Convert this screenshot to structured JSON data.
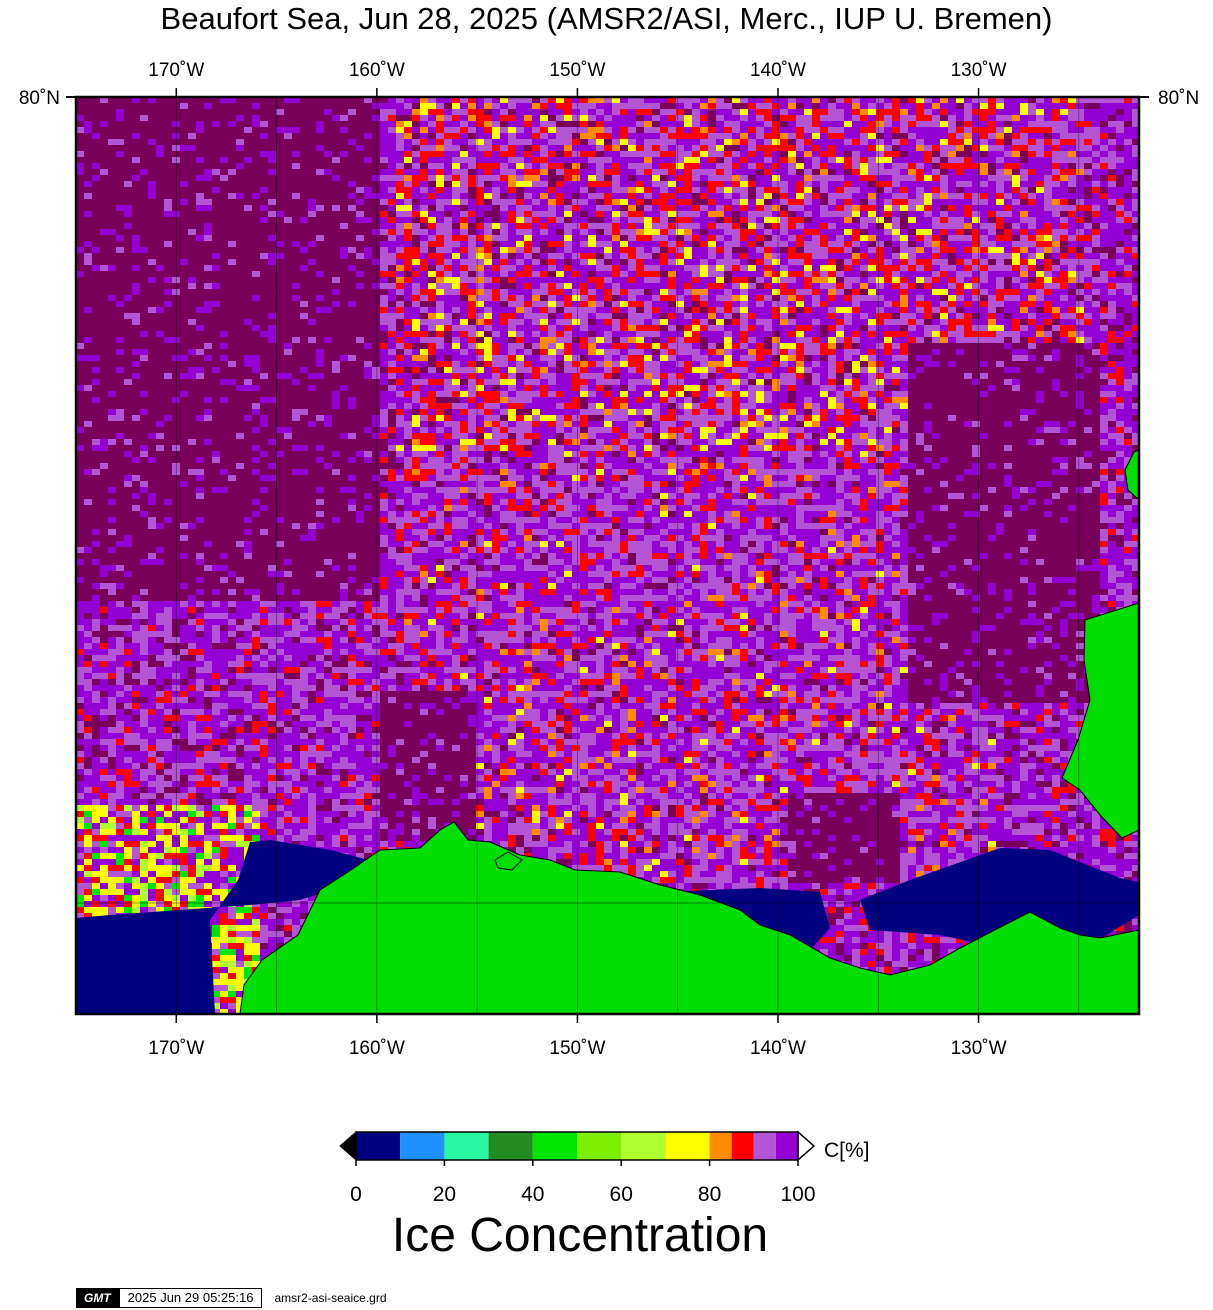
{
  "title": "Beaufort Sea, Jun 28, 2025 (AMSR2/ASI, Merc., IUP U. Bremen)",
  "map": {
    "lon_ticks": [
      {
        "lon": -170,
        "label": "170˚W"
      },
      {
        "lon": -160,
        "label": "160˚W"
      },
      {
        "lon": -150,
        "label": "150˚W"
      },
      {
        "lon": -140,
        "label": "140˚W"
      },
      {
        "lon": -130,
        "label": "130˚W"
      }
    ],
    "lon_range": [
      -175,
      -122
    ],
    "lat_top_label": "80˚N",
    "land_color": "#00dd00",
    "open_water_color": "#000080",
    "variable": "sea ice concentration"
  },
  "colorbar": {
    "unit_label": "C[%]",
    "title": "Ice Concentration",
    "range": [
      0,
      100
    ],
    "tick_values": [
      "0",
      "20",
      "40",
      "60",
      "80",
      "100"
    ],
    "bins": [
      {
        "from": 0,
        "to": 10,
        "color": "#000080"
      },
      {
        "from": 10,
        "to": 20,
        "color": "#1e90ff"
      },
      {
        "from": 20,
        "to": 30,
        "color": "#2af5a0"
      },
      {
        "from": 30,
        "to": 40,
        "color": "#228b22"
      },
      {
        "from": 40,
        "to": 50,
        "color": "#00e600"
      },
      {
        "from": 50,
        "to": 60,
        "color": "#7cee00"
      },
      {
        "from": 60,
        "to": 70,
        "color": "#adff2f"
      },
      {
        "from": 70,
        "to": 80,
        "color": "#ffff00"
      },
      {
        "from": 80,
        "to": 85,
        "color": "#ff8c00"
      },
      {
        "from": 85,
        "to": 90,
        "color": "#ff0000"
      },
      {
        "from": 90,
        "to": 95,
        "color": "#b455d6"
      },
      {
        "from": 95,
        "to": 100,
        "color": "#9400d3"
      }
    ],
    "over_color": "#ffffff",
    "under_color": "#000000",
    "saturated_color": "#78005a"
  },
  "footer": {
    "logo": "GMT",
    "timestamp": "2025 Jun 29 05:25:16",
    "grid_file": "amsr2-asi-seaice.grd"
  }
}
